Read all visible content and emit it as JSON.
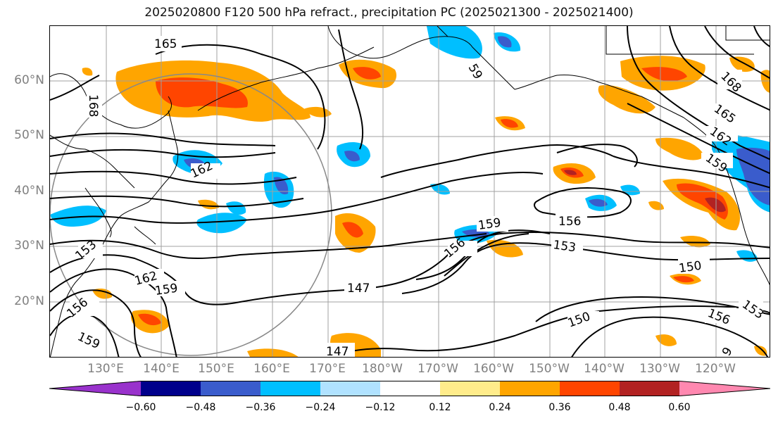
{
  "title": "2025020800 F120 500 hPa refract., precipitation PC (2025021300 - 2025021400)",
  "lat_labels": [
    "60°N",
    "50°N",
    "40°N",
    "30°N",
    "20°N"
  ],
  "lon_labels": [
    "130°E",
    "140°E",
    "150°E",
    "160°E",
    "170°E",
    "180°W",
    "170°W",
    "160°W",
    "150°W",
    "140°W",
    "130°W",
    "120°W"
  ],
  "contour_labels": [
    "165",
    "168",
    "162",
    "153",
    "162",
    "159",
    "156",
    "159",
    "147",
    "147",
    "159",
    "156",
    "153",
    "156",
    "150",
    "150",
    "156",
    "159",
    "162",
    "165",
    "168",
    "153",
    "9",
    "59"
  ],
  "colorbar": {
    "ticks": [
      "−0.60",
      "−0.48",
      "−0.36",
      "−0.24",
      "−0.12",
      "0.12",
      "0.24",
      "0.36",
      "0.48",
      "0.60"
    ],
    "colors": [
      "#9932cc",
      "#00008b",
      "#3a5ccc",
      "#00bfff",
      "#b0e2ff",
      "#ffffff",
      "#ffec8b",
      "#ffa500",
      "#ff4500",
      "#b22222",
      "#ff88b0"
    ]
  },
  "colors": {
    "grid": "#a0a0a0",
    "contour": "#000000",
    "coast": "#000000",
    "axis_label": "#808080"
  }
}
